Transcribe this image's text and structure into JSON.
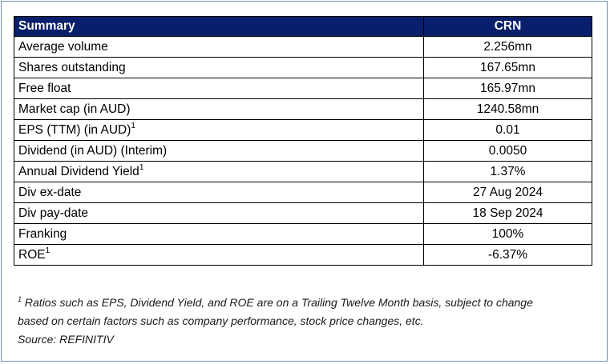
{
  "table": {
    "headers": [
      "Summary",
      "CRN"
    ],
    "rows": [
      {
        "label": "Average volume",
        "value": "2.256mn"
      },
      {
        "label": "Shares outstanding",
        "value": "167.65mn"
      },
      {
        "label": "Free float",
        "value": "165.97mn"
      },
      {
        "label": "Market cap (in AUD)",
        "value": "1240.58mn"
      },
      {
        "label": "EPS (TTM) (in AUD)",
        "sup": "1",
        "value": "0.01"
      },
      {
        "label": "Dividend (in AUD) (Interim)",
        "value": "0.0050"
      },
      {
        "label": "Annual Dividend Yield",
        "sup": "1",
        "value": "1.37%"
      },
      {
        "label": "Div ex-date",
        "value": "27 Aug 2024"
      },
      {
        "label": "Div pay-date",
        "value": "18 Sep 2024"
      },
      {
        "label": "Franking",
        "value": "100%"
      },
      {
        "label": "ROE",
        "sup": "1",
        "value": "-6.37%"
      }
    ]
  },
  "footnote": {
    "marker": "1",
    "line1": "Ratios such as EPS, Dividend Yield, and ROE are on a Trailing Twelve Month basis, subject to change",
    "line2": "based on certain factors such as company performance, stock price changes, etc.",
    "source": "Source: REFINITIV"
  }
}
